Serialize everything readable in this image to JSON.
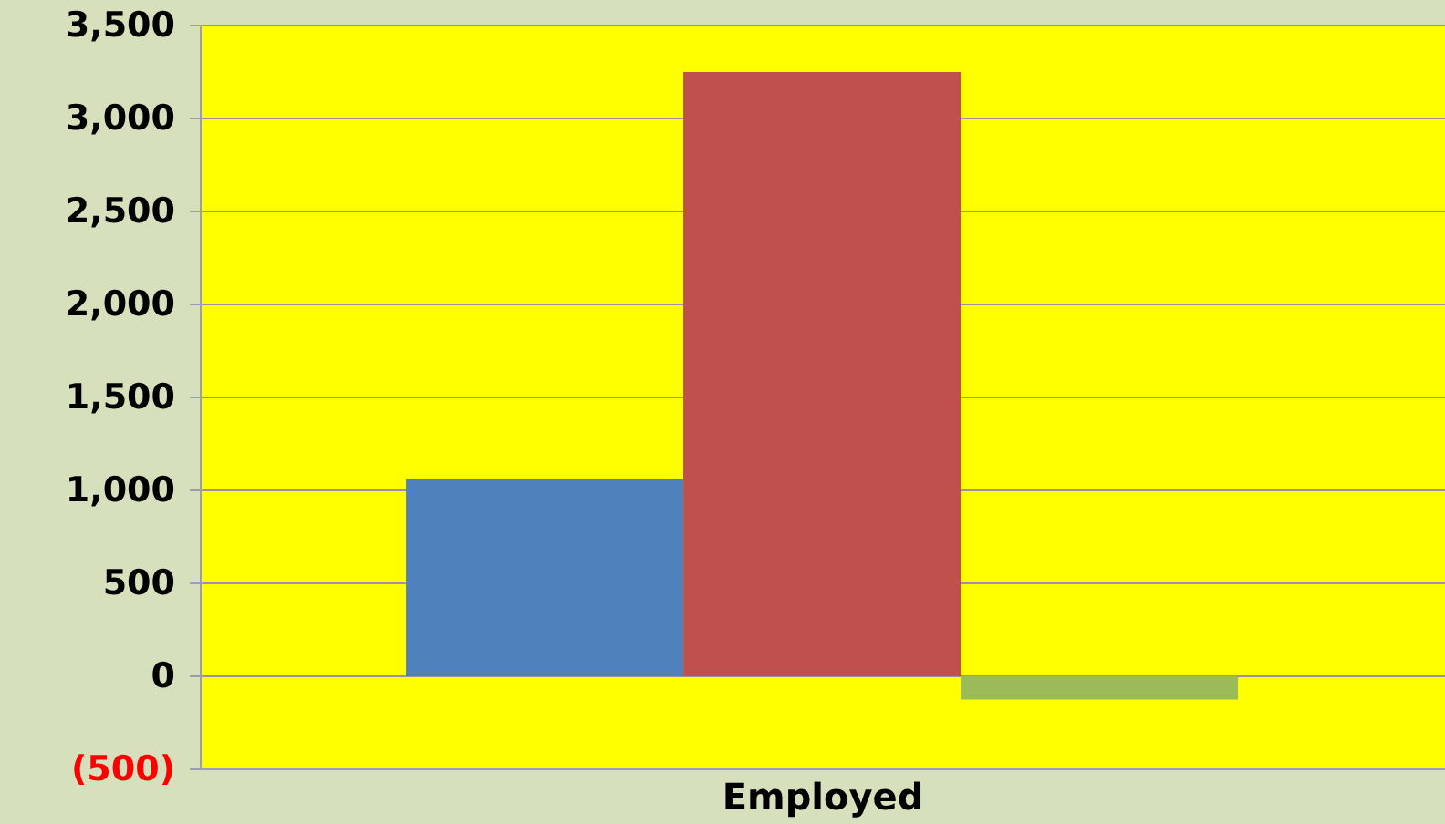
{
  "chart_data": {
    "type": "bar",
    "categories": [
      "Employed"
    ],
    "series": [
      {
        "color": "#4f81bd",
        "values": [
          1060
        ]
      },
      {
        "color": "#c0504d",
        "values": [
          3250
        ]
      },
      {
        "color": "#9bbb59",
        "values": [
          -125
        ]
      }
    ],
    "ylim": [
      -500,
      3500
    ],
    "yticks": [
      {
        "value": -500,
        "label": "(500)"
      },
      {
        "value": 0,
        "label": "0"
      },
      {
        "value": 500,
        "label": "500"
      },
      {
        "value": 1000,
        "label": "1,000"
      },
      {
        "value": 1500,
        "label": "1,500"
      },
      {
        "value": 2000,
        "label": "2,000"
      },
      {
        "value": 2500,
        "label": "2,500"
      },
      {
        "value": 3000,
        "label": "3,000"
      },
      {
        "value": 3500,
        "label": "3,500"
      }
    ],
    "grid": "y",
    "legend": false
  }
}
